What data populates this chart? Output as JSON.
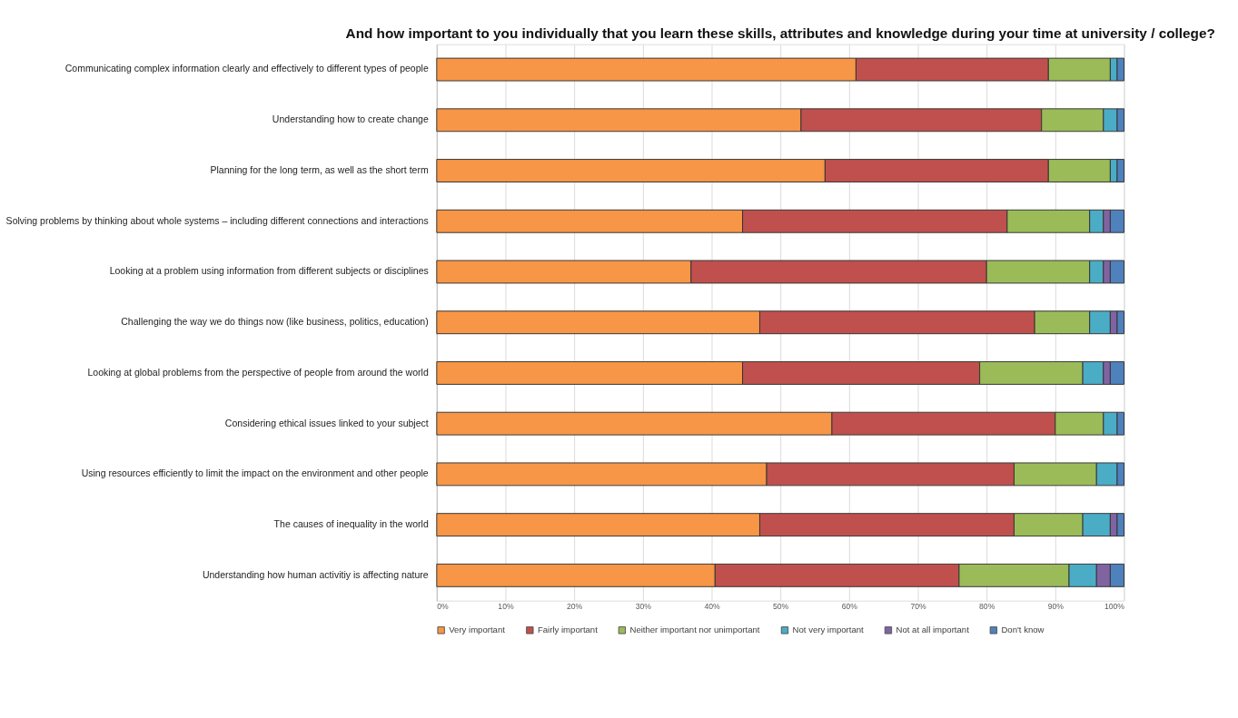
{
  "chart_data": {
    "type": "bar",
    "orientation": "horizontal",
    "stacked": true,
    "title": "And how important to you individually that you learn these skills, attributes and knowledge during your time at university / college?",
    "categories": [
      "Communicating complex information clearly and effectively to different types of people",
      "Understanding how to create change",
      "Planning for the long term, as well as the short term",
      "Solving problems by thinking about whole systems – including different connections and interactions",
      "Looking at a problem using information from different subjects or disciplines",
      "Challenging the way we do things now (like business, politics, education)",
      "Looking at global problems from the perspective of people from around the world",
      "Considering ethical issues linked to your subject",
      "Using resources efficiently to limit the impact on the environment and other people",
      "The causes of inequality in the world",
      "Understanding how human activitiy is affecting nature"
    ],
    "series": [
      {
        "name": "Very important",
        "color": "#f79646",
        "values": [
          61,
          53,
          56.5,
          44.5,
          37,
          47,
          44.5,
          57.5,
          48,
          47,
          40.5
        ]
      },
      {
        "name": "Fairly important",
        "color": "#c0504d",
        "values": [
          28,
          35,
          32.5,
          38.5,
          43,
          40,
          34.5,
          32.5,
          36,
          37,
          35.5
        ]
      },
      {
        "name": "Neither important nor unimportant",
        "color": "#9bbb59",
        "values": [
          9,
          9,
          9,
          12,
          15,
          8,
          15,
          7,
          12,
          10,
          16
        ]
      },
      {
        "name": "Not very important",
        "color": "#4bacc6",
        "values": [
          1,
          2,
          1,
          2,
          2,
          3,
          3,
          2,
          3,
          4,
          4
        ]
      },
      {
        "name": "Not at all important",
        "color": "#8064a2",
        "values": [
          0,
          0,
          0,
          1,
          1,
          1,
          1,
          0,
          0,
          1,
          2
        ]
      },
      {
        "name": "Don't know",
        "color": "#4f81bd",
        "values": [
          1,
          1,
          1,
          2,
          2,
          1,
          2,
          1,
          1,
          1,
          2
        ]
      }
    ],
    "xlim": [
      0,
      100
    ],
    "xticks": [
      {
        "value": 0,
        "label": "0%"
      },
      {
        "value": 10,
        "label": "10%"
      },
      {
        "value": 20,
        "label": "20%"
      },
      {
        "value": 30,
        "label": "30%"
      },
      {
        "value": 40,
        "label": "40%"
      },
      {
        "value": 50,
        "label": "50%"
      },
      {
        "value": 60,
        "label": "60%"
      },
      {
        "value": 70,
        "label": "70%"
      },
      {
        "value": 80,
        "label": "80%"
      },
      {
        "value": 90,
        "label": "90%"
      },
      {
        "value": 100,
        "label": "100%"
      }
    ],
    "grid": "x",
    "legend": "bottom"
  }
}
